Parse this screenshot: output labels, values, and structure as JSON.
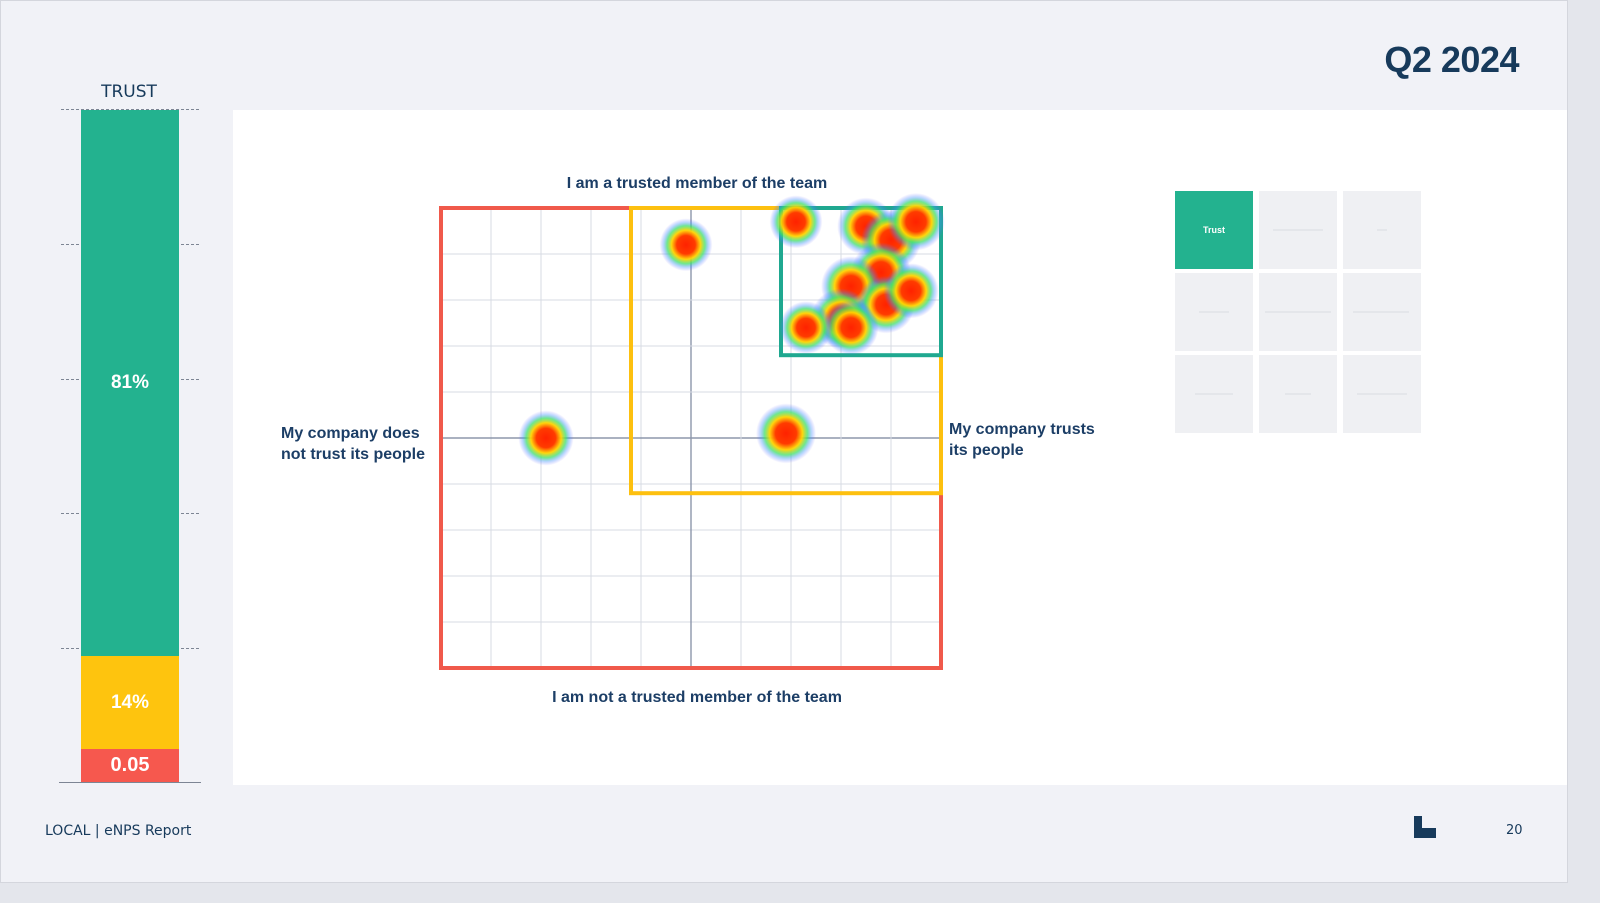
{
  "header": {
    "period": "Q2 2024"
  },
  "trust_bar": {
    "label": "TRUST",
    "segments": [
      {
        "label": "81%",
        "value": 81,
        "color": "#23b28f"
      },
      {
        "label": "14%",
        "value": 14,
        "color": "#fec40e"
      },
      {
        "label": "0.05",
        "value": 5,
        "color": "#f6584e"
      }
    ]
  },
  "chart_data": {
    "type": "heatmap",
    "title": "",
    "axis_labels": {
      "top": "I am a trusted member of the team",
      "bottom": "I am not a trusted member of the team",
      "left": [
        "My company does",
        "not trust its people"
      ],
      "right": [
        "My company trusts",
        "its people"
      ]
    },
    "grid": true,
    "xlim": [
      0,
      10
    ],
    "ylim": [
      0,
      10
    ],
    "regions": [
      {
        "color": "#f0594b",
        "x": [
          0,
          10
        ],
        "y": [
          0,
          10
        ]
      },
      {
        "color": "#fdc00f",
        "x": [
          3.8,
          10
        ],
        "y": [
          3.8,
          10
        ]
      },
      {
        "color": "#1fa890",
        "x": [
          6.8,
          10
        ],
        "y": [
          6.8,
          10
        ]
      }
    ],
    "points": [
      {
        "x": 4.9,
        "y": 9.2,
        "intensity": 0.7
      },
      {
        "x": 7.1,
        "y": 9.7,
        "intensity": 0.7
      },
      {
        "x": 8.5,
        "y": 9.6,
        "intensity": 0.9
      },
      {
        "x": 9.0,
        "y": 9.3,
        "intensity": 1.0
      },
      {
        "x": 9.5,
        "y": 9.7,
        "intensity": 0.9
      },
      {
        "x": 8.8,
        "y": 8.6,
        "intensity": 1.0
      },
      {
        "x": 8.2,
        "y": 8.3,
        "intensity": 1.0
      },
      {
        "x": 8.9,
        "y": 7.9,
        "intensity": 0.9
      },
      {
        "x": 9.4,
        "y": 8.2,
        "intensity": 0.8
      },
      {
        "x": 8.0,
        "y": 7.6,
        "intensity": 1.0
      },
      {
        "x": 8.2,
        "y": 7.4,
        "intensity": 0.8
      },
      {
        "x": 7.3,
        "y": 7.4,
        "intensity": 0.7
      },
      {
        "x": 2.1,
        "y": 5.0,
        "intensity": 0.8
      },
      {
        "x": 6.9,
        "y": 5.1,
        "intensity": 1.0
      }
    ]
  },
  "matrix": {
    "active_label": "Trust"
  },
  "footer": {
    "left": "LOCAL | eNPS Report",
    "page": "20"
  }
}
